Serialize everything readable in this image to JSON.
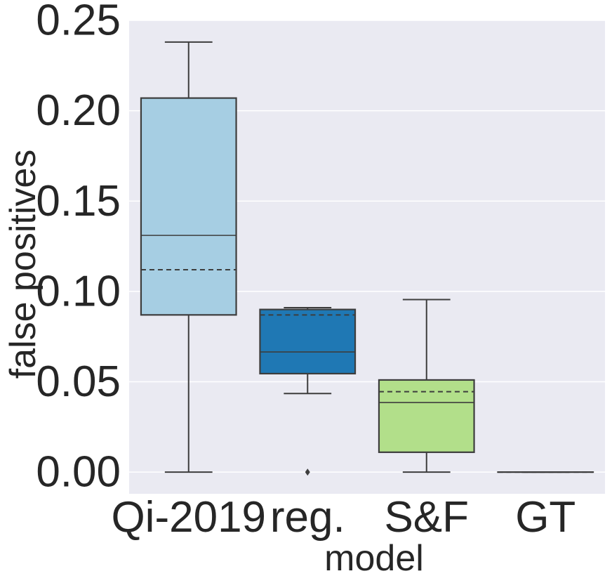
{
  "chart_data": {
    "type": "box",
    "title": "",
    "xlabel": "model",
    "ylabel": "false positives",
    "ylim": [
      -0.012,
      0.25
    ],
    "yticks": [
      0.0,
      0.05,
      0.1,
      0.15,
      0.2,
      0.25
    ],
    "ytick_labels": [
      "0.00",
      "0.05",
      "0.10",
      "0.15",
      "0.20",
      "0.25"
    ],
    "grid": true,
    "categories": [
      "Qi-2019",
      "reg.",
      "S&F",
      "GT"
    ],
    "boxes": [
      {
        "name": "Qi-2019",
        "whisker_low": 0.0,
        "q1": 0.087,
        "median": 0.131,
        "mean": 0.112,
        "q3": 0.207,
        "whisker_high": 0.238,
        "outliers": [],
        "color": "#a6cee3"
      },
      {
        "name": "reg.",
        "whisker_low": 0.0435,
        "q1": 0.0545,
        "median": 0.0665,
        "mean": 0.087,
        "q3": 0.09,
        "whisker_high": 0.091,
        "outliers": [
          0.0
        ],
        "color": "#1f78b4"
      },
      {
        "name": "S&F",
        "whisker_low": 0.0,
        "q1": 0.011,
        "median": 0.0385,
        "mean": 0.0445,
        "q3": 0.051,
        "whisker_high": 0.0955,
        "outliers": [],
        "color": "#b2df8a"
      },
      {
        "name": "GT",
        "whisker_low": 0.0,
        "q1": 0.0,
        "median": 0.0,
        "mean": 0.0,
        "q3": 0.0,
        "whisker_high": 0.0,
        "outliers": [],
        "color": "#33a02c"
      }
    ]
  },
  "style": {
    "plot_background": "#eaeaf2",
    "grid_color": "#ffffff",
    "line_color": "#3d3d3d",
    "text_color": "#262626"
  }
}
